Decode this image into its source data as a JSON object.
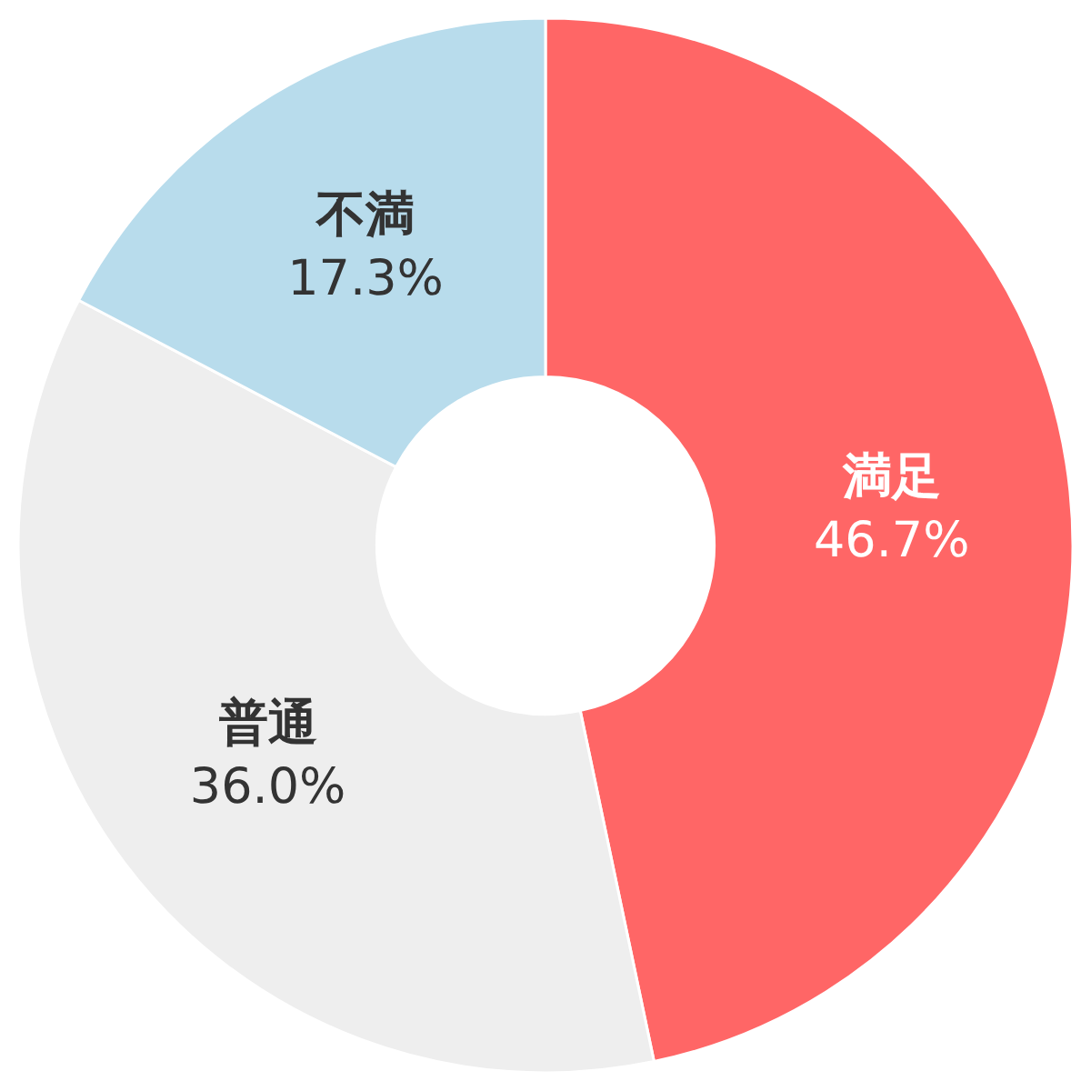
{
  "chart_data": {
    "type": "donut",
    "categories": [
      "満足",
      "普通",
      "不満"
    ],
    "values": [
      46.7,
      36.0,
      17.3
    ],
    "value_labels": [
      "46.7%",
      "36.0%",
      "17.3%"
    ],
    "colors": [
      "#ff6666",
      "#eeeeee",
      "#b8dcec"
    ],
    "legend": false
  }
}
